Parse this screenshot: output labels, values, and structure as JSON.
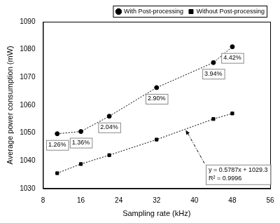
{
  "chart_data": {
    "type": "line",
    "x_label": "Sampling rate (kHz)",
    "y_label": "Average power consumption (mW)",
    "x": [
      11,
      16,
      22,
      32,
      44,
      48
    ],
    "series": [
      {
        "name": "With Post-processing",
        "color": "#000000",
        "marker": "circle",
        "line_style": "dotted",
        "values": [
          1049.7,
          1050.5,
          1056.0,
          1066.3,
          1075.3,
          1081.0
        ]
      },
      {
        "name": "Without Post-processing",
        "color": "#000000",
        "marker": "square",
        "line_style": "dotted",
        "values": [
          1035.5,
          1038.8,
          1042.0,
          1047.6,
          1055.0,
          1057.0
        ]
      }
    ],
    "annotations": [
      "1.26%",
      "1.36%",
      "2.04%",
      "2.90%",
      "3.94%",
      "4.42%",
      "y = 0.5787x + 1029.3",
      "R² = 0.9996"
    ],
    "xlim": [
      8,
      56
    ],
    "xticks": [
      8,
      16,
      24,
      32,
      40,
      48,
      56
    ],
    "ylim": [
      1030,
      1090
    ],
    "yticks": [
      1030,
      1040,
      1050,
      1060,
      1070,
      1080,
      1090
    ],
    "grid": false,
    "legend": "top-right"
  }
}
